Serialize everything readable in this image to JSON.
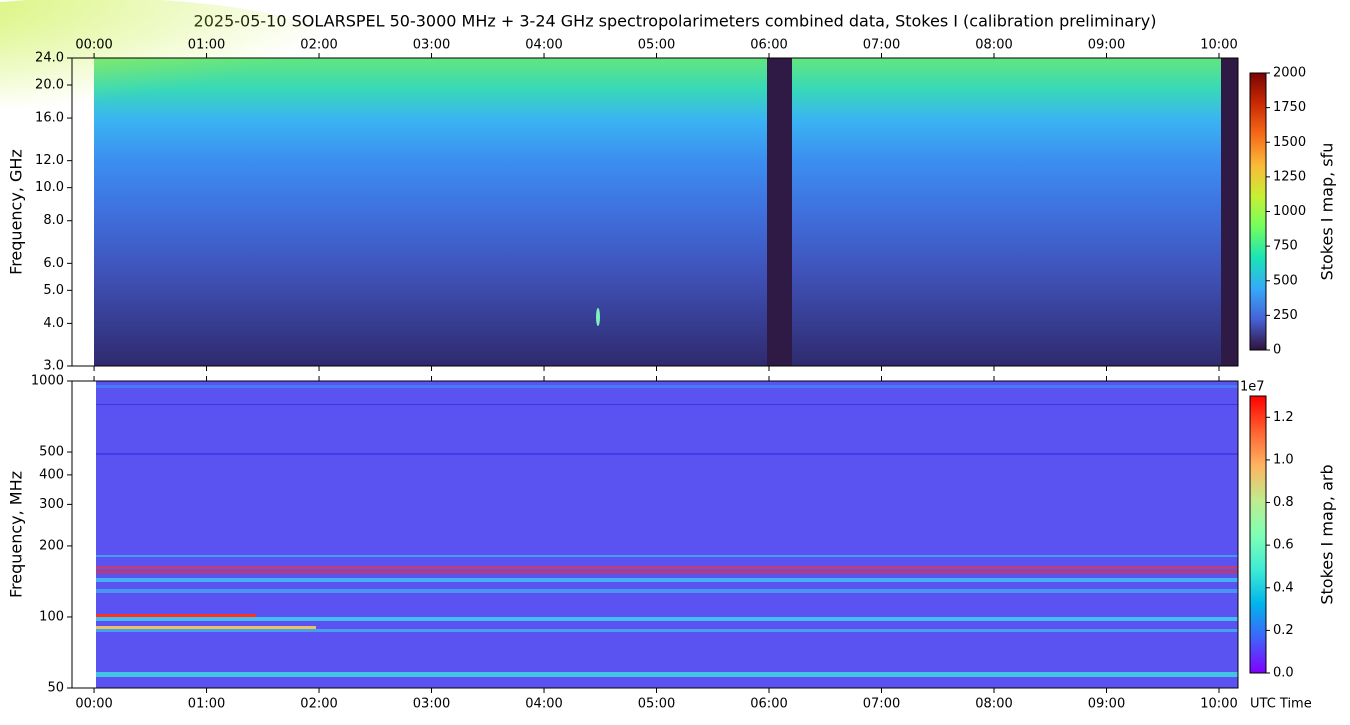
{
  "title": "2025-05-10  SOLARSPEL  50-3000 MHz  +  3-24 GHz  spectropolarimeters combined data,  Stokes I  (calibration preliminary)",
  "chart_data": [
    {
      "type": "heatmap",
      "x_axis_position": "top",
      "ylabel": "Frequency, GHz",
      "yscale": "log",
      "xlim": [
        -0.196,
        10.169
      ],
      "xticks": [
        {
          "value": 0,
          "label": "00:00"
        },
        {
          "value": 1,
          "label": "01:00"
        },
        {
          "value": 2,
          "label": "02:00"
        },
        {
          "value": 3,
          "label": "03:00"
        },
        {
          "value": 4,
          "label": "04:00"
        },
        {
          "value": 5,
          "label": "05:00"
        },
        {
          "value": 6,
          "label": "06:00"
        },
        {
          "value": 7,
          "label": "07:00"
        },
        {
          "value": 8,
          "label": "08:00"
        },
        {
          "value": 9,
          "label": "09:00"
        },
        {
          "value": 10,
          "label": "10:00"
        }
      ],
      "ylim": [
        3,
        24
      ],
      "yticks": [
        {
          "value": 3,
          "label": "3.0"
        },
        {
          "value": 4,
          "label": "4.0"
        },
        {
          "value": 5,
          "label": "5.0"
        },
        {
          "value": 6,
          "label": "6.0"
        },
        {
          "value": 8,
          "label": "8.0"
        },
        {
          "value": 10,
          "label": "10.0"
        },
        {
          "value": 12,
          "label": "12.0"
        },
        {
          "value": 16,
          "label": "16.0"
        },
        {
          "value": 20,
          "label": "20.0"
        },
        {
          "value": 24,
          "label": "24.0"
        }
      ],
      "colorbar": {
        "label": "Stokes I map, sfu",
        "colormap": "turbo",
        "clim": [
          0,
          2000
        ],
        "ticks": [
          0,
          250,
          500,
          750,
          1000,
          1250,
          1500,
          1750,
          2000
        ]
      }
    },
    {
      "type": "heatmap",
      "x_axis_position": "bottom",
      "xlabel": "UTC Time",
      "ylabel": "Frequency, MHz",
      "yscale": "log",
      "xlim": [
        -0.196,
        10.169
      ],
      "xticks": [
        {
          "value": 0,
          "label": "00:00"
        },
        {
          "value": 1,
          "label": "01:00"
        },
        {
          "value": 2,
          "label": "02:00"
        },
        {
          "value": 3,
          "label": "03:00"
        },
        {
          "value": 4,
          "label": "04:00"
        },
        {
          "value": 5,
          "label": "05:00"
        },
        {
          "value": 6,
          "label": "06:00"
        },
        {
          "value": 7,
          "label": "07:00"
        },
        {
          "value": 8,
          "label": "08:00"
        },
        {
          "value": 9,
          "label": "09:00"
        },
        {
          "value": 10,
          "label": "10:00"
        }
      ],
      "ylim": [
        50,
        1000
      ],
      "yticks": [
        50,
        100,
        200,
        300,
        400,
        500,
        1000
      ],
      "colorbar": {
        "label": "Stokes I map, arb",
        "colormap": "rainbow",
        "offset_label": "1e7",
        "clim": [
          0,
          1.3
        ],
        "ticks": [
          {
            "value": 0,
            "label": "0.0"
          },
          0.2,
          0.4,
          0.6,
          0.8,
          {
            "value": 1,
            "label": "1.0"
          },
          1.2
        ]
      }
    }
  ]
}
